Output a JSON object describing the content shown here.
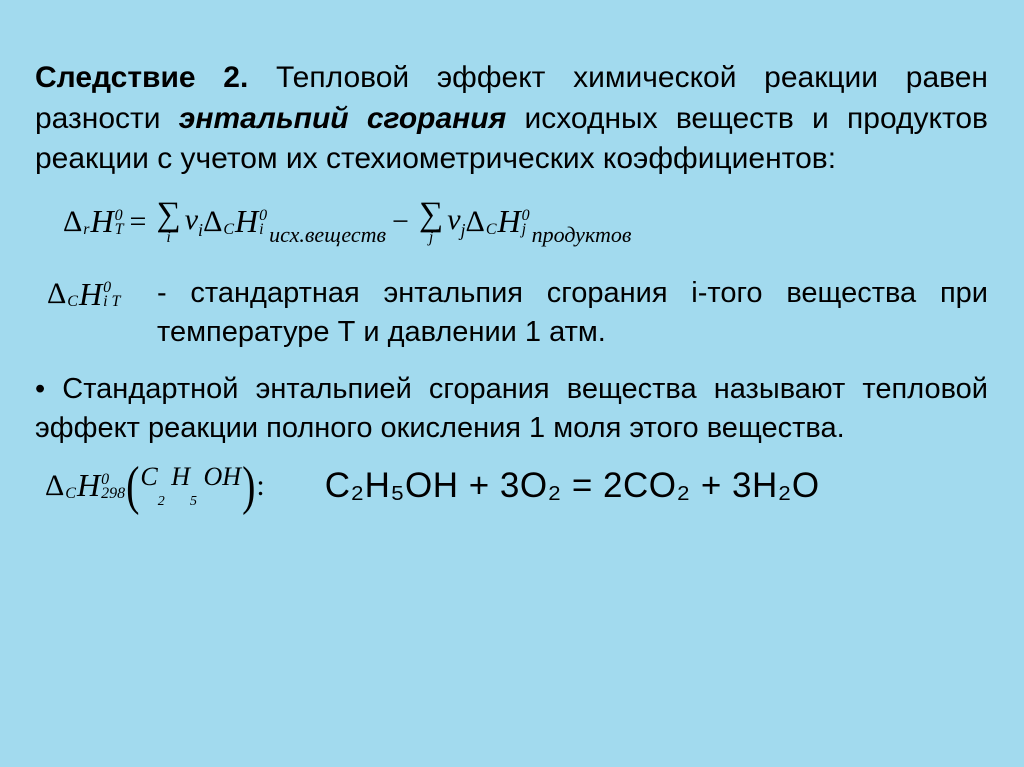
{
  "colors": {
    "background": "#a2daee",
    "text": "#000000"
  },
  "heading": {
    "lead": "Следствие 2.",
    "part1": " Тепловой эффект химической реакции равен разности ",
    "emph": "энтальпий сгорания",
    "part2": " исходных веществ и продуктов реакции с учетом их стехиометрических коэффициентов:"
  },
  "formula": {
    "lhs_presub": "r",
    "lhs_postsup": "0",
    "lhs_postsub": "T",
    "eq": "=",
    "sum1_idx": "i",
    "nu1": "ν",
    "nu1_sub": "i",
    "t1_presub": "C",
    "t1_postsup": "0",
    "t1_postsub": "i",
    "t1_label": "исх.веществ",
    "minus": "−",
    "sum2_idx": "j",
    "nu2": "ν",
    "nu2_sub": "j",
    "t2_presub": "C",
    "t2_postsup": "0",
    "t2_postsub": "j",
    "t2_label": "продуктов",
    "delta": "Δ",
    "H": "H",
    "Sigma": "∑"
  },
  "term": {
    "presub": "C",
    "postsup": "0",
    "postsub1": "i",
    "postsub2": "T",
    "def": "- стандартная энтальпия сгорания i-того вещества при температуре Т и давлении 1 атм."
  },
  "bullet": "• Стандартной энтальпией сгорания вещества называют тепловой эффект реакции полного окисления 1 моля этого вещества.",
  "reaction": {
    "presub": "C",
    "postsup": "0",
    "postsub": "298",
    "mol_C": "C",
    "mol_C_sub": "2",
    "mol_H": "H",
    "mol_H_sub": "5",
    "mol_OH": "OH",
    "colon": ":",
    "equation": "C₂H₅OH + 3O₂ = 2CO₂ + 3H₂O"
  }
}
